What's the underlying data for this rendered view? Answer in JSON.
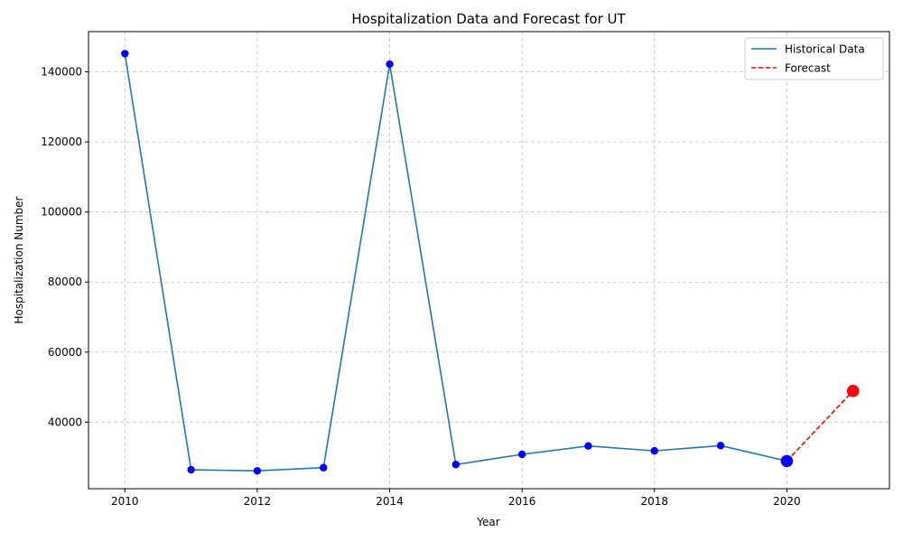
{
  "chart_data": {
    "type": "line",
    "title": "Hospitalization Data and Forecast for UT",
    "xlabel": "Year",
    "ylabel": "Hospitalization Number",
    "xlim": [
      2009.45,
      2021.55
    ],
    "ylim": [
      21000,
      151500
    ],
    "xticks": [
      2010,
      2012,
      2014,
      2016,
      2018,
      2020
    ],
    "yticks": [
      40000,
      60000,
      80000,
      100000,
      120000,
      140000
    ],
    "grid": true,
    "legend_position": "top-right",
    "series": [
      {
        "name": "Historical Data",
        "style": "solid",
        "color": "#1f77b4",
        "marker_color": "#0000ff",
        "x": [
          2010,
          2011,
          2012,
          2013,
          2014,
          2015,
          2016,
          2017,
          2018,
          2019,
          2020
        ],
        "y": [
          145200,
          26400,
          26100,
          27000,
          142200,
          27900,
          30800,
          33200,
          31800,
          33300,
          28900
        ]
      },
      {
        "name": "Forecast",
        "style": "dashed",
        "color": "#ff0000",
        "marker_color": "#ff0000",
        "x": [
          2020,
          2021
        ],
        "y": [
          28900,
          48900
        ]
      }
    ],
    "highlight_points": [
      {
        "x": 2020,
        "y": 28900,
        "color": "#0000ff"
      },
      {
        "x": 2021,
        "y": 48900,
        "color": "#ff0000"
      }
    ]
  }
}
